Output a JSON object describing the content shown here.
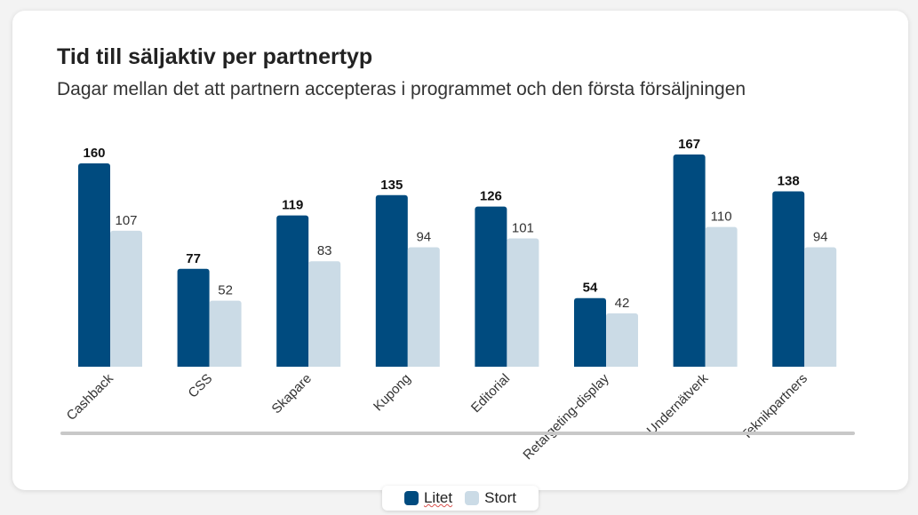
{
  "colors": {
    "small": "#004b7f",
    "large": "#cbdbe6",
    "axis": "#c8c8c8"
  },
  "chart_data": {
    "type": "bar",
    "title": "Tid till säljaktiv per partnertyp",
    "subtitle": "Dagar mellan det att partnern accepteras i programmet och den första försäljningen",
    "categories": [
      "Cashback",
      "CSS",
      "Skapare",
      "Kupong",
      "Editorial",
      "Retargeting-display",
      "Undernätverk",
      "Teknikpartners"
    ],
    "series": [
      {
        "name": "Litet",
        "values": [
          160,
          77,
          119,
          135,
          126,
          54,
          167,
          138
        ]
      },
      {
        "name": "Stort",
        "values": [
          107,
          52,
          83,
          94,
          101,
          42,
          110,
          94
        ]
      }
    ],
    "ylim": [
      0,
      170
    ],
    "grid": false,
    "legend_position": "bottom-center",
    "data_labels": true
  }
}
